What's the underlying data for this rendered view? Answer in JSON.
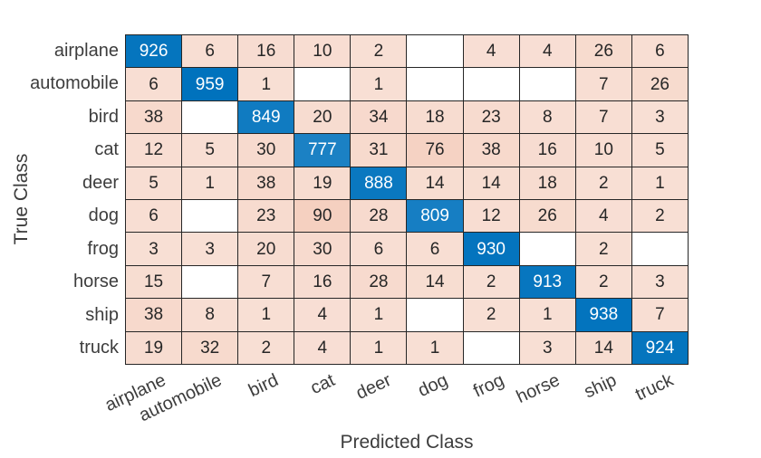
{
  "chart_data": {
    "type": "heatmap",
    "subtype": "confusion-matrix",
    "title": "",
    "xlabel": "Predicted Class",
    "ylabel": "True Class",
    "classes": [
      "airplane",
      "automobile",
      "bird",
      "cat",
      "deer",
      "dog",
      "frog",
      "horse",
      "ship",
      "truck"
    ],
    "matrix": [
      [
        926,
        6,
        16,
        10,
        2,
        null,
        4,
        4,
        26,
        6
      ],
      [
        6,
        959,
        1,
        null,
        1,
        null,
        null,
        null,
        7,
        26
      ],
      [
        38,
        null,
        849,
        20,
        34,
        18,
        23,
        8,
        7,
        3
      ],
      [
        12,
        5,
        30,
        777,
        31,
        76,
        38,
        16,
        10,
        5
      ],
      [
        5,
        1,
        38,
        19,
        888,
        14,
        14,
        18,
        2,
        1
      ],
      [
        6,
        null,
        23,
        90,
        28,
        809,
        12,
        26,
        4,
        2
      ],
      [
        3,
        3,
        20,
        30,
        6,
        6,
        930,
        null,
        2,
        null
      ],
      [
        15,
        null,
        7,
        16,
        28,
        14,
        2,
        913,
        2,
        3
      ],
      [
        38,
        8,
        1,
        4,
        1,
        null,
        2,
        1,
        938,
        7
      ],
      [
        19,
        32,
        2,
        4,
        1,
        1,
        null,
        3,
        14,
        924
      ]
    ],
    "legend": "none",
    "grid": "on",
    "colors": {
      "diagonal": "#0072BD",
      "off_diagonal": "#D95319",
      "empty_cell": "#FFFFFF",
      "grid_line": "#262626",
      "cell_text": "#262626",
      "diagonal_cell_text": "#FFFFFF",
      "label_text": "#3D3D3D"
    }
  }
}
